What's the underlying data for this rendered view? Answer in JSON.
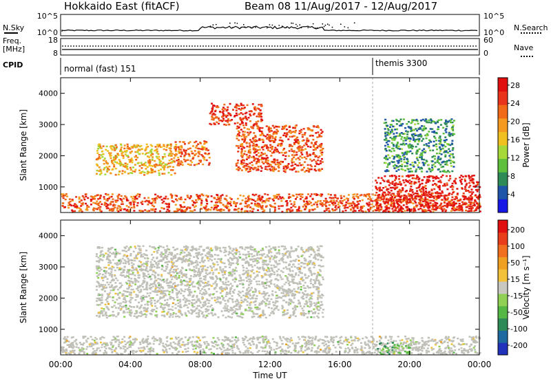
{
  "header": {
    "title": "Hokkaido East (fitACF)",
    "beam_info": "Beam 08  11/Aug/2017 - 12/Aug/2017"
  },
  "strips": {
    "nsky_label": "N.Sky",
    "nsky_ticks": [
      "10^5",
      "10^0"
    ],
    "nsearch_label": "N.Search",
    "nsearch_ticks": [
      "10^5",
      "10^0"
    ],
    "freq_label_line1": "Freq.",
    "freq_label_line2": "[MHz]",
    "freq_ticks": [
      "18",
      "8"
    ],
    "nave_label": "Nave",
    "nave_ticks": [
      "60",
      "0"
    ],
    "cpid_label": "CPID",
    "cpid_modes": [
      {
        "name": "normal (fast) 151",
        "start_hour": 0
      },
      {
        "name": "themis 3300",
        "start_hour": 18
      }
    ]
  },
  "chart_data": [
    {
      "type": "heatmap",
      "name": "power",
      "xlabel": "Time UT",
      "ylabel": "Slant Range [km]",
      "x_ticks": [
        "00:00",
        "04:00",
        "08:00",
        "12:00",
        "16:00",
        "20:00",
        "00:00"
      ],
      "x_range_hours": [
        0,
        24
      ],
      "y_ticks": [
        "1000",
        "2000",
        "3000",
        "4000"
      ],
      "ylim": [
        180,
        4500
      ],
      "colorbar_label": "Power [dB]",
      "colorbar_ticks": [
        "4",
        "8",
        "12",
        "16",
        "20",
        "24",
        "28"
      ],
      "colorbar_range": [
        0,
        30
      ],
      "colorbar_colors": [
        "#1717e6",
        "#1e55a8",
        "#2e8b57",
        "#5dbf3c",
        "#a6d83a",
        "#f0c020",
        "#f59a20",
        "#f06a18",
        "#e8341a",
        "#e01010"
      ],
      "features": [
        {
          "t0": 0,
          "t1": 24,
          "r0": 230,
          "r1": 800,
          "value": 24
        },
        {
          "t0": 2.0,
          "t1": 6.5,
          "r0": 1400,
          "r1": 2400,
          "value": 18
        },
        {
          "t0": 6.5,
          "t1": 8.5,
          "r0": 1700,
          "r1": 2500,
          "value": 22
        },
        {
          "t0": 8.5,
          "t1": 11.5,
          "r0": 3000,
          "r1": 3700,
          "value": 26
        },
        {
          "t0": 10.0,
          "t1": 15.0,
          "r0": 1500,
          "r1": 3000,
          "value": 24
        },
        {
          "t0": 18.5,
          "t1": 22.5,
          "r0": 1500,
          "r1": 3200,
          "value": 8
        },
        {
          "t0": 18.0,
          "t1": 24,
          "r0": 230,
          "r1": 1400,
          "value": 28
        }
      ]
    },
    {
      "type": "heatmap",
      "name": "velocity",
      "xlabel": "Time UT",
      "ylabel": "Slant Range [km]",
      "x_ticks": [
        "00:00",
        "04:00",
        "08:00",
        "12:00",
        "16:00",
        "20:00",
        "00:00"
      ],
      "x_range_hours": [
        0,
        24
      ],
      "y_ticks": [
        "1000",
        "2000",
        "3000",
        "4000"
      ],
      "ylim": [
        180,
        4500
      ],
      "colorbar_label": "Velocity [m s⁻¹]",
      "colorbar_ticks": [
        "200",
        "100",
        "50",
        "15",
        "-15",
        "-50",
        "-100",
        "-200"
      ],
      "colorbar_range": [
        -250,
        250
      ],
      "colorbar_colors": [
        "#2233bb",
        "#1e6aa0",
        "#2e8b57",
        "#55b845",
        "#8fd055",
        "#c8c8c0",
        "#f2c33a",
        "#f0a020",
        "#f07020",
        "#e83e1a",
        "#e01010"
      ],
      "ground_scatter_color": "#c0c0b8",
      "features": [
        {
          "t0": 0,
          "t1": 24,
          "r0": 230,
          "r1": 800,
          "value": 0,
          "kind": "ground"
        },
        {
          "t0": 2.0,
          "t1": 15.0,
          "r0": 1400,
          "r1": 3700,
          "value": 0,
          "kind": "ground"
        },
        {
          "t0": 18.0,
          "t1": 20.0,
          "r0": 230,
          "r1": 600,
          "value": -60,
          "kind": "scatter"
        }
      ]
    }
  ]
}
